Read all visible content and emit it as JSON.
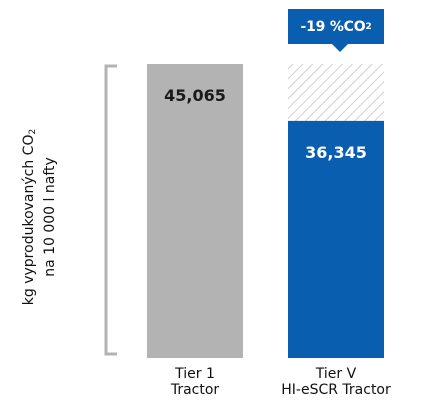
{
  "chart_data": {
    "type": "bar",
    "ylabel_lines": [
      "kg vyprodukovaných CO",
      "na 10 000 l nafty"
    ],
    "ylabel_sub": "2",
    "categories": [
      [
        "Tier 1",
        "Tractor"
      ],
      [
        "Tier V",
        "HI-eSCR Tractor"
      ]
    ],
    "values": [
      45.065,
      36.345
    ],
    "value_labels": [
      "45,065",
      "36,345"
    ],
    "bar_colors": [
      "#b3b3b3",
      "#0a5eb0"
    ],
    "reference_value": 45.065,
    "hatched_difference": true,
    "annotation": {
      "prefix": "-19 %CO",
      "sub": "2"
    },
    "ylim": [
      0,
      45.065
    ]
  }
}
